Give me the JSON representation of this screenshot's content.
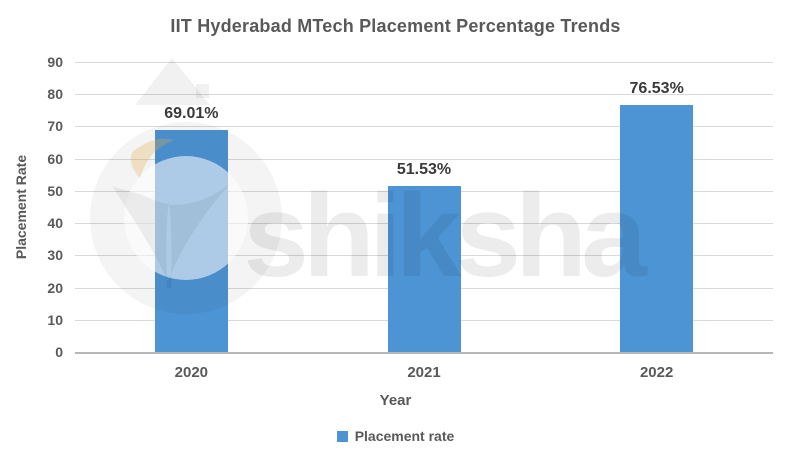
{
  "title": "IIT Hyderabad MTech Placement Percentage Trends",
  "watermark": {
    "text": "shiksha"
  },
  "chart_data": {
    "type": "bar",
    "title": "IIT Hyderabad MTech Placement Percentage Trends",
    "categories": [
      "2020",
      "2021",
      "2022"
    ],
    "series": [
      {
        "name": "Placement rate",
        "values": [
          69.01,
          51.53,
          76.53
        ]
      }
    ],
    "data_labels": [
      "69.01%",
      "51.53%",
      "76.53%"
    ],
    "xlabel": "Year",
    "ylabel": "Placement Rate",
    "ylim": [
      0,
      90
    ],
    "yticks": [
      0,
      10,
      20,
      30,
      40,
      50,
      60,
      70,
      80,
      90
    ],
    "grid": true,
    "legend_position": "bottom"
  },
  "legend": {
    "label": "Placement rate"
  },
  "colors": {
    "bar": "#4D94D4",
    "gridline": "#D9D9D9",
    "axis_line": "#B7B7B7",
    "title_text": "#595959",
    "tick_text": "#595959",
    "data_label_text": "#3A3A3A",
    "watermark_gray": "rgba(0,0,0,0.07)",
    "watermark_cream": "rgba(225,175,80,0.22)"
  }
}
